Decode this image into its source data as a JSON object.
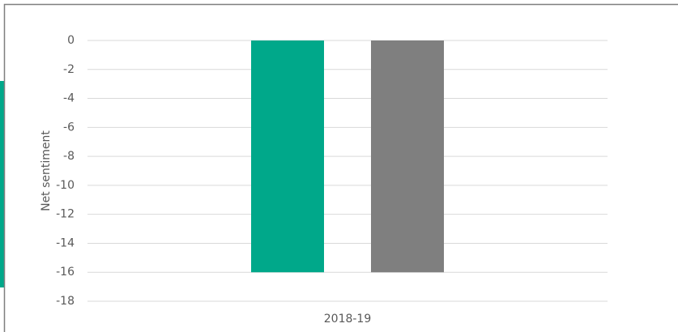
{
  "chart_data": {
    "type": "bar",
    "y_label": "Net sentiment",
    "categories": [
      "2018-19"
    ],
    "series": [
      {
        "color": "#00a88a",
        "values": [
          -16
        ]
      },
      {
        "color": "#7f7f7f",
        "values": [
          -16
        ]
      }
    ],
    "ylim": [
      -18,
      0
    ],
    "yticks": [
      0,
      -2,
      -4,
      -6,
      -8,
      -10,
      -12,
      -14,
      -16,
      -18
    ],
    "grid": true
  }
}
